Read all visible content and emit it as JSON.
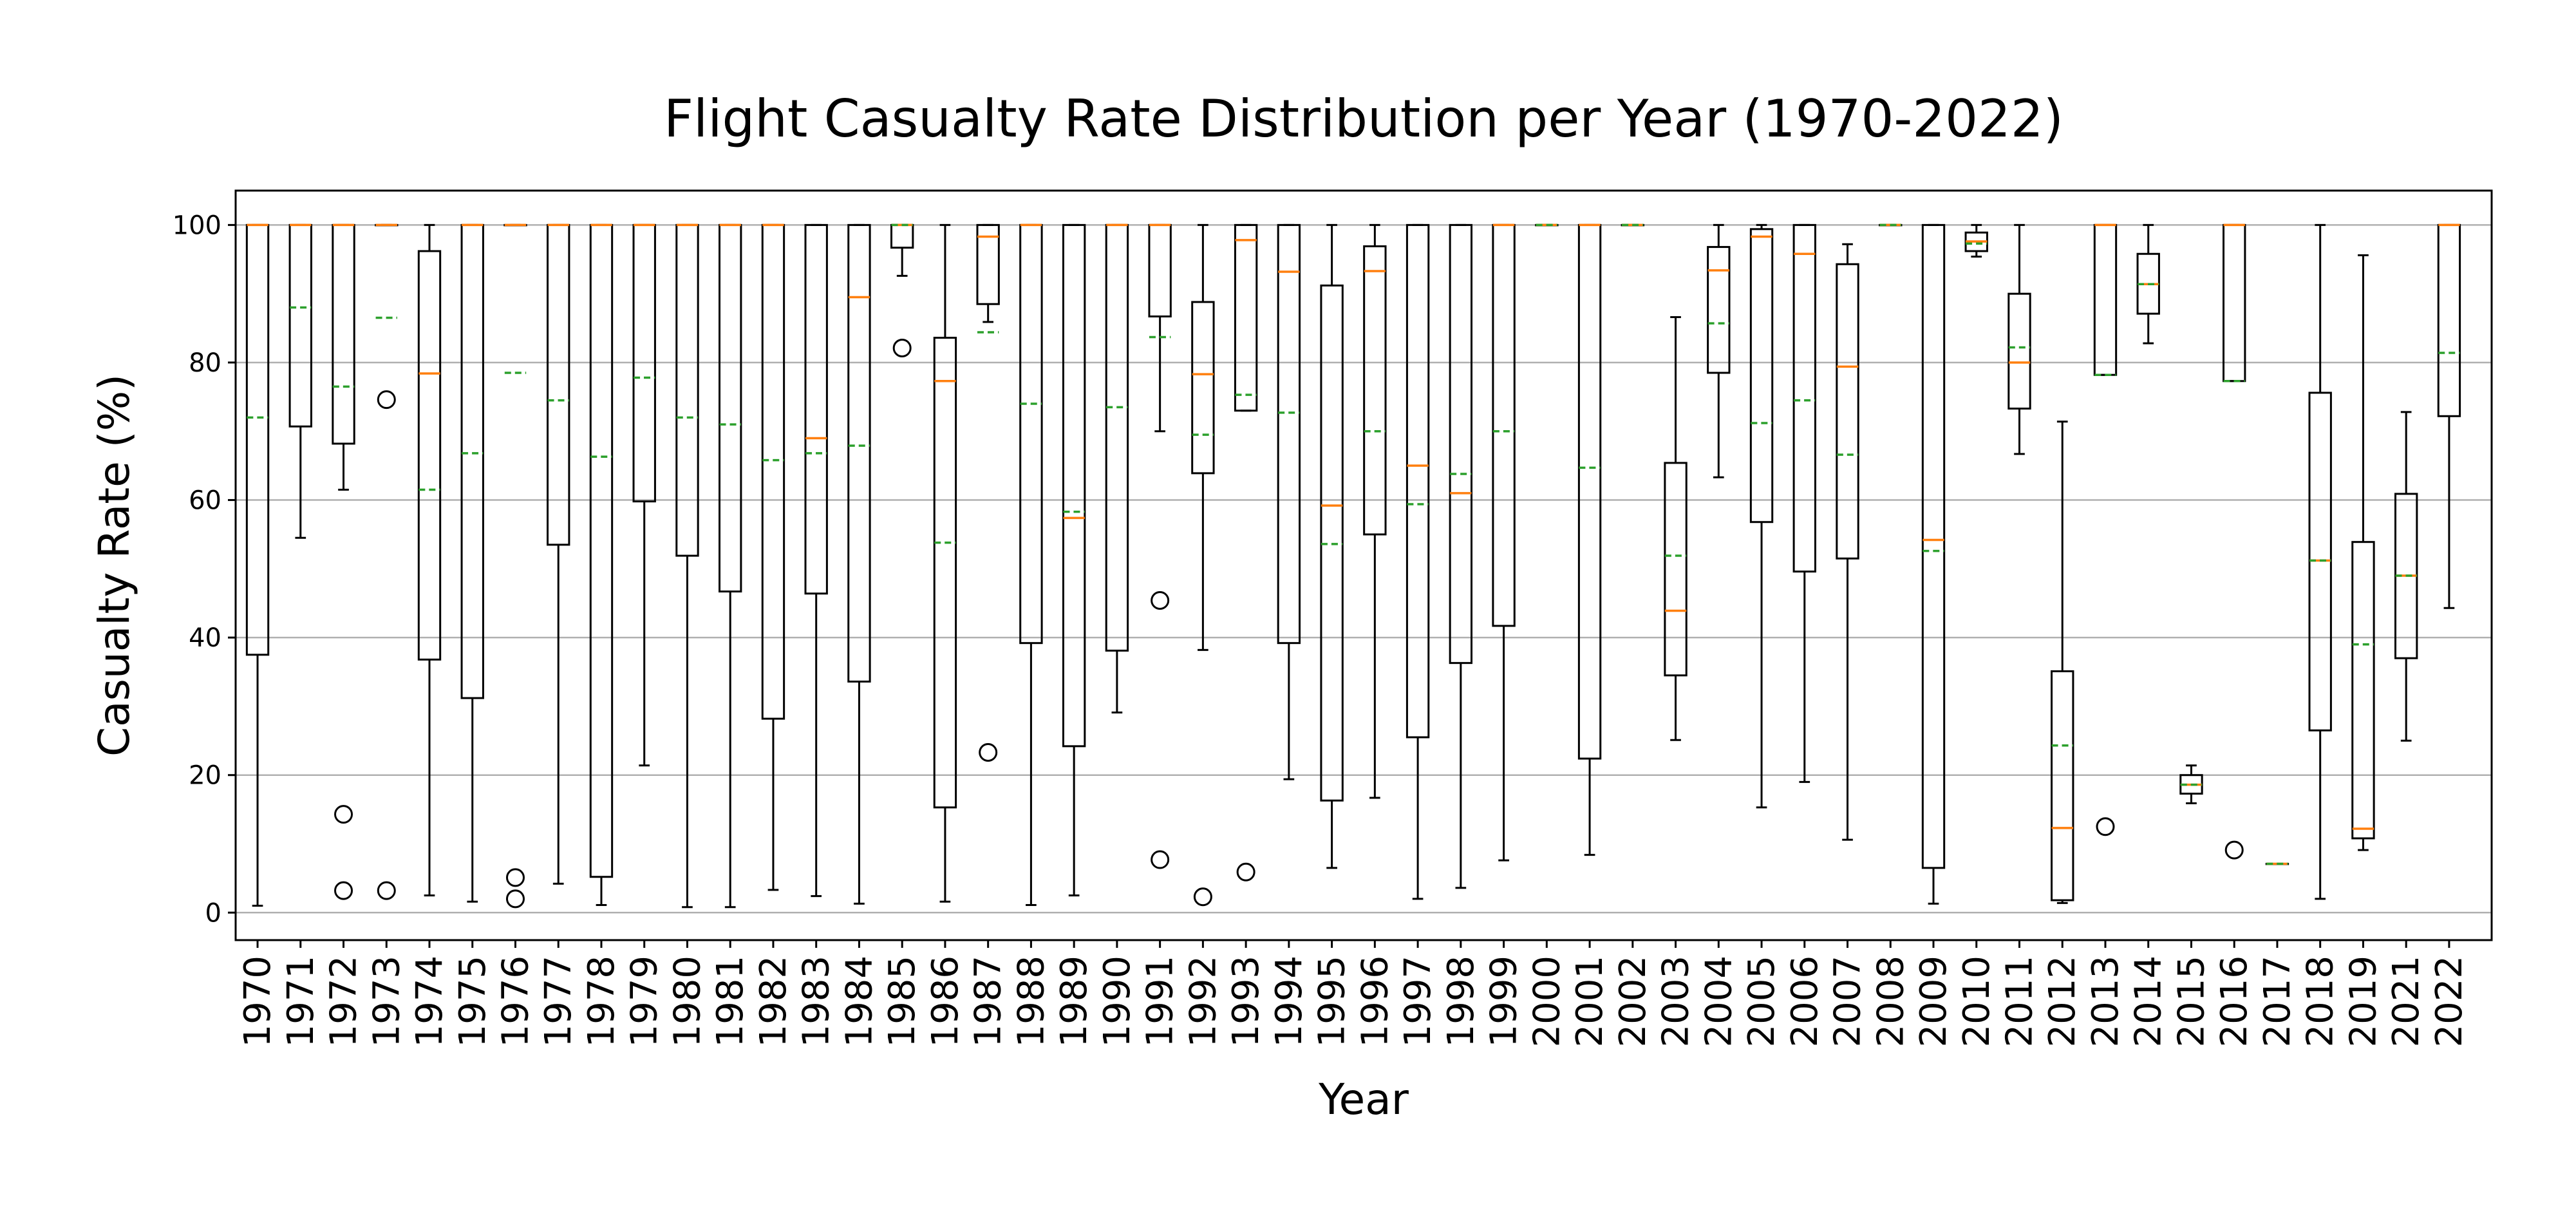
{
  "chart_data": {
    "type": "boxplot",
    "title": "Flight Casualty Rate Distribution per Year (1970-2022)",
    "xlabel": "Year",
    "ylabel": "Casualty Rate (%)",
    "ylim": [
      -4,
      105
    ],
    "yticks": [
      0,
      20,
      40,
      60,
      80,
      100
    ],
    "grid": "horizontal",
    "colors": {
      "box": "#000000",
      "median": "#ff7f0e",
      "mean": "#2ca02c",
      "grid": "#b0b0b0"
    },
    "categories": [
      "1970",
      "1971",
      "1972",
      "1973",
      "1974",
      "1975",
      "1976",
      "1977",
      "1978",
      "1979",
      "1980",
      "1981",
      "1982",
      "1983",
      "1984",
      "1985",
      "1986",
      "1987",
      "1988",
      "1989",
      "1990",
      "1991",
      "1992",
      "1993",
      "1994",
      "1995",
      "1996",
      "1997",
      "1998",
      "1999",
      "2000",
      "2001",
      "2002",
      "2003",
      "2004",
      "2005",
      "2006",
      "2007",
      "2008",
      "2009",
      "2010",
      "2011",
      "2012",
      "2013",
      "2014",
      "2015",
      "2016",
      "2017",
      "2018",
      "2019",
      "2021",
      "2022"
    ],
    "boxes": [
      {
        "whislo": 1,
        "q1": 37.5,
        "med": 100,
        "q3": 100,
        "whishi": 100,
        "mean": 72,
        "fliers": []
      },
      {
        "whislo": 54.5,
        "q1": 70.7,
        "med": 100,
        "q3": 100,
        "whishi": 100,
        "mean": 88,
        "fliers": []
      },
      {
        "whislo": 61.5,
        "q1": 68.2,
        "med": 100,
        "q3": 100,
        "whishi": 100,
        "mean": 76.5,
        "fliers": [
          14.3,
          3.2
        ]
      },
      {
        "whislo": 100,
        "q1": 100,
        "med": 100,
        "q3": 100,
        "whishi": 100,
        "mean": 86.5,
        "fliers": [
          74.6,
          3.2
        ]
      },
      {
        "whislo": 2.5,
        "q1": 36.8,
        "med": 78.4,
        "q3": 96.2,
        "whishi": 100,
        "mean": 61.5,
        "fliers": []
      },
      {
        "whislo": 1.6,
        "q1": 31.2,
        "med": 100,
        "q3": 100,
        "whishi": 100,
        "mean": 66.8,
        "fliers": []
      },
      {
        "whislo": 100,
        "q1": 100,
        "med": 100,
        "q3": 100,
        "whishi": 100,
        "mean": 78.5,
        "fliers": [
          5.1,
          2
        ]
      },
      {
        "whislo": 4.2,
        "q1": 53.5,
        "med": 100,
        "q3": 100,
        "whishi": 100,
        "mean": 74.5,
        "fliers": []
      },
      {
        "whislo": 1.1,
        "q1": 5.2,
        "med": 100,
        "q3": 100,
        "whishi": 100,
        "mean": 66.3,
        "fliers": []
      },
      {
        "whislo": 21.4,
        "q1": 59.8,
        "med": 100,
        "q3": 100,
        "whishi": 100,
        "mean": 77.8,
        "fliers": []
      },
      {
        "whislo": 0.8,
        "q1": 51.9,
        "med": 100,
        "q3": 100,
        "whishi": 100,
        "mean": 72,
        "fliers": []
      },
      {
        "whislo": 0.8,
        "q1": 46.7,
        "med": 100,
        "q3": 100,
        "whishi": 100,
        "mean": 71,
        "fliers": []
      },
      {
        "whislo": 3.3,
        "q1": 28.2,
        "med": 100,
        "q3": 100,
        "whishi": 100,
        "mean": 65.8,
        "fliers": []
      },
      {
        "whislo": 2.4,
        "q1": 46.4,
        "med": 69,
        "q3": 100,
        "whishi": 100,
        "mean": 66.8,
        "fliers": []
      },
      {
        "whislo": 1.3,
        "q1": 33.6,
        "med": 89.5,
        "q3": 100,
        "whishi": 100,
        "mean": 67.9,
        "fliers": []
      },
      {
        "whislo": 92.6,
        "q1": 96.7,
        "med": 100,
        "q3": 100,
        "whishi": 100,
        "mean": 100,
        "fliers": [
          82.1
        ]
      },
      {
        "whislo": 1.6,
        "q1": 15.3,
        "med": 77.3,
        "q3": 83.6,
        "whishi": 100,
        "mean": 53.8,
        "fliers": []
      },
      {
        "whislo": 85.9,
        "q1": 88.5,
        "med": 98.3,
        "q3": 100,
        "whishi": 100,
        "mean": 84.4,
        "fliers": [
          23.3
        ]
      },
      {
        "whislo": 1.1,
        "q1": 39.2,
        "med": 100,
        "q3": 100,
        "whishi": 100,
        "mean": 74,
        "fliers": []
      },
      {
        "whislo": 2.5,
        "q1": 24.2,
        "med": 57.4,
        "q3": 100,
        "whishi": 100,
        "mean": 58.3,
        "fliers": []
      },
      {
        "whislo": 29.1,
        "q1": 38.1,
        "med": 100,
        "q3": 100,
        "whishi": 100,
        "mean": 73.5,
        "fliers": []
      },
      {
        "whislo": 70,
        "q1": 86.7,
        "med": 100,
        "q3": 100,
        "whishi": 100,
        "mean": 83.7,
        "fliers": [
          45.4,
          7.7
        ]
      },
      {
        "whislo": 38.2,
        "q1": 63.9,
        "med": 78.3,
        "q3": 88.8,
        "whishi": 100,
        "mean": 69.5,
        "fliers": [
          2.3
        ]
      },
      {
        "whislo": 73,
        "q1": 73,
        "med": 97.8,
        "q3": 100,
        "whishi": 100,
        "mean": 75.3,
        "fliers": [
          5.9
        ]
      },
      {
        "whislo": 19.4,
        "q1": 39.2,
        "med": 93.2,
        "q3": 100,
        "whishi": 100,
        "mean": 72.7,
        "fliers": []
      },
      {
        "whislo": 6.5,
        "q1": 16.3,
        "med": 59.2,
        "q3": 91.2,
        "whishi": 100,
        "mean": 53.6,
        "fliers": []
      },
      {
        "whislo": 16.7,
        "q1": 55,
        "med": 93.3,
        "q3": 96.9,
        "whishi": 100,
        "mean": 70,
        "fliers": []
      },
      {
        "whislo": 2,
        "q1": 25.5,
        "med": 65,
        "q3": 100,
        "whishi": 100,
        "mean": 59.4,
        "fliers": []
      },
      {
        "whislo": 3.6,
        "q1": 36.3,
        "med": 61,
        "q3": 100,
        "whishi": 100,
        "mean": 63.8,
        "fliers": []
      },
      {
        "whislo": 7.6,
        "q1": 41.7,
        "med": 100,
        "q3": 100,
        "whishi": 100,
        "mean": 70,
        "fliers": []
      },
      {
        "whislo": 100,
        "q1": 100,
        "med": 100,
        "q3": 100,
        "whishi": 100,
        "mean": 100,
        "fliers": []
      },
      {
        "whislo": 8.4,
        "q1": 22.4,
        "med": 100,
        "q3": 100,
        "whishi": 100,
        "mean": 64.7,
        "fliers": []
      },
      {
        "whislo": 100,
        "q1": 100,
        "med": 100,
        "q3": 100,
        "whishi": 100,
        "mean": 100,
        "fliers": []
      },
      {
        "whislo": 25.1,
        "q1": 34.5,
        "med": 43.9,
        "q3": 65.4,
        "whishi": 86.6,
        "mean": 51.9,
        "fliers": []
      },
      {
        "whislo": 63.3,
        "q1": 78.5,
        "med": 93.4,
        "q3": 96.8,
        "whishi": 100,
        "mean": 85.7,
        "fliers": []
      },
      {
        "whislo": 15.3,
        "q1": 56.8,
        "med": 98.3,
        "q3": 99.4,
        "whishi": 100,
        "mean": 71.2,
        "fliers": []
      },
      {
        "whislo": 19,
        "q1": 49.6,
        "med": 95.8,
        "q3": 100,
        "whishi": 100,
        "mean": 74.5,
        "fliers": []
      },
      {
        "whislo": 10.6,
        "q1": 51.5,
        "med": 79.4,
        "q3": 94.3,
        "whishi": 97.2,
        "mean": 66.6,
        "fliers": []
      },
      {
        "whislo": 100,
        "q1": 100,
        "med": 100,
        "q3": 100,
        "whishi": 100,
        "mean": 100,
        "fliers": []
      },
      {
        "whislo": 1.3,
        "q1": 6.5,
        "med": 54.2,
        "q3": 100,
        "whishi": 100,
        "mean": 52.6,
        "fliers": []
      },
      {
        "whislo": 95.4,
        "q1": 96.2,
        "med": 97.6,
        "q3": 98.9,
        "whishi": 100,
        "mean": 97.3,
        "fliers": []
      },
      {
        "whislo": 66.7,
        "q1": 73.3,
        "med": 80,
        "q3": 90,
        "whishi": 100,
        "mean": 82.2,
        "fliers": []
      },
      {
        "whislo": 1.4,
        "q1": 1.8,
        "med": 12.3,
        "q3": 35.1,
        "whishi": 71.4,
        "mean": 24.3,
        "fliers": []
      },
      {
        "whislo": 78.2,
        "q1": 78.2,
        "med": 100,
        "q3": 100,
        "whishi": 100,
        "mean": 78.2,
        "fliers": [
          12.5
        ]
      },
      {
        "whislo": 82.8,
        "q1": 87.1,
        "med": 91.4,
        "q3": 95.8,
        "whishi": 100,
        "mean": 91.4,
        "fliers": []
      },
      {
        "whislo": 15.9,
        "q1": 17.3,
        "med": 18.6,
        "q3": 20,
        "whishi": 21.4,
        "mean": 18.6,
        "fliers": []
      },
      {
        "whislo": 77.3,
        "q1": 77.3,
        "med": 100,
        "q3": 100,
        "whishi": 100,
        "mean": 77.3,
        "fliers": [
          9.1
        ]
      },
      {
        "whislo": 7.1,
        "q1": 7.1,
        "med": 7.1,
        "q3": 7.1,
        "whishi": 7.1,
        "mean": 7.1,
        "fliers": []
      },
      {
        "whislo": 2,
        "q1": 26.5,
        "med": 51.2,
        "q3": 75.6,
        "whishi": 100,
        "mean": 51.2,
        "fliers": []
      },
      {
        "whislo": 9.1,
        "q1": 10.8,
        "med": 12.2,
        "q3": 53.9,
        "whishi": 95.6,
        "mean": 39,
        "fliers": []
      },
      {
        "whislo": 25,
        "q1": 37,
        "med": 49,
        "q3": 60.9,
        "whishi": 72.8,
        "mean": 49,
        "fliers": []
      },
      {
        "whislo": 44.3,
        "q1": 72.2,
        "med": 100,
        "q3": 100,
        "whishi": 100,
        "mean": 81.4,
        "fliers": []
      }
    ]
  }
}
